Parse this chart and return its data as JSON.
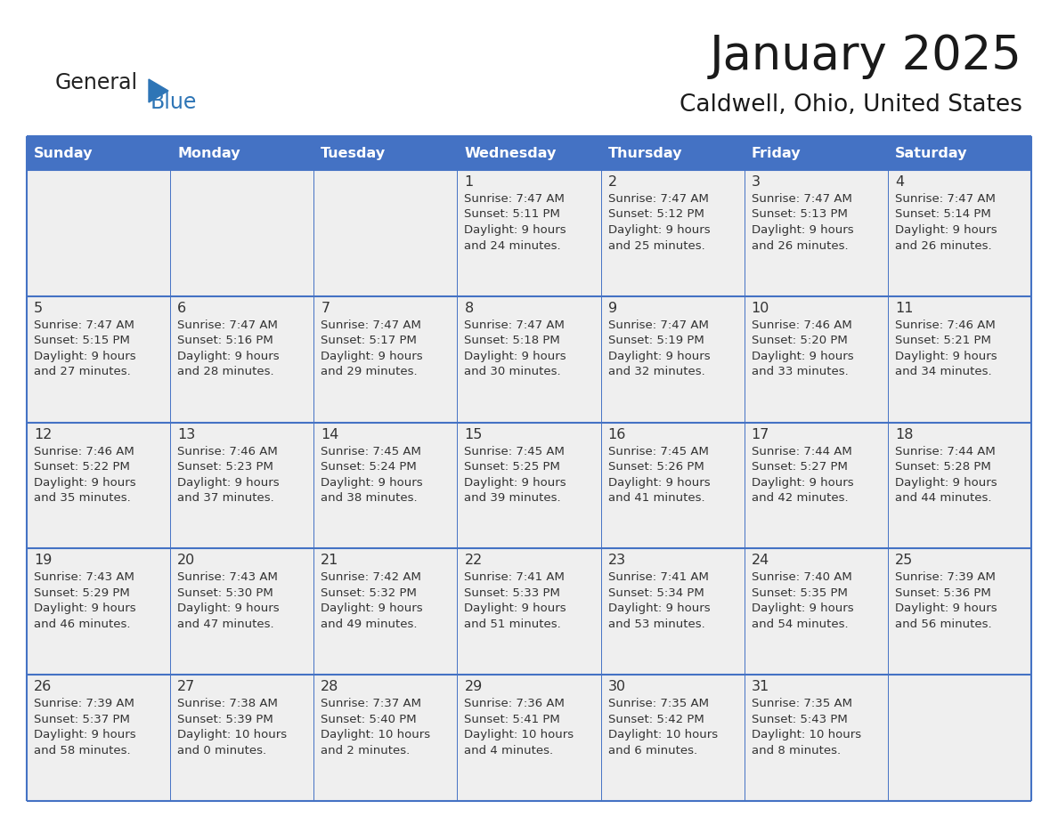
{
  "title": "January 2025",
  "subtitle": "Caldwell, Ohio, United States",
  "days_of_week": [
    "Sunday",
    "Monday",
    "Tuesday",
    "Wednesday",
    "Thursday",
    "Friday",
    "Saturday"
  ],
  "header_bg": "#4472C4",
  "header_text_color": "#FFFFFF",
  "cell_bg": "#EFEFEF",
  "gap_color": "#FFFFFF",
  "line_color": "#4472C4",
  "day_number_color": "#333333",
  "text_color": "#333333",
  "logo_general_color": "#222222",
  "logo_blue_color": "#2E75B6",
  "calendar": [
    [
      null,
      null,
      null,
      {
        "day": "1",
        "sunrise": "7:47 AM",
        "sunset": "5:11 PM",
        "daylight_h": "9 hours",
        "daylight_m": "24 minutes."
      },
      {
        "day": "2",
        "sunrise": "7:47 AM",
        "sunset": "5:12 PM",
        "daylight_h": "9 hours",
        "daylight_m": "25 minutes."
      },
      {
        "day": "3",
        "sunrise": "7:47 AM",
        "sunset": "5:13 PM",
        "daylight_h": "9 hours",
        "daylight_m": "26 minutes."
      },
      {
        "day": "4",
        "sunrise": "7:47 AM",
        "sunset": "5:14 PM",
        "daylight_h": "9 hours",
        "daylight_m": "26 minutes."
      }
    ],
    [
      {
        "day": "5",
        "sunrise": "7:47 AM",
        "sunset": "5:15 PM",
        "daylight_h": "9 hours",
        "daylight_m": "27 minutes."
      },
      {
        "day": "6",
        "sunrise": "7:47 AM",
        "sunset": "5:16 PM",
        "daylight_h": "9 hours",
        "daylight_m": "28 minutes."
      },
      {
        "day": "7",
        "sunrise": "7:47 AM",
        "sunset": "5:17 PM",
        "daylight_h": "9 hours",
        "daylight_m": "29 minutes."
      },
      {
        "day": "8",
        "sunrise": "7:47 AM",
        "sunset": "5:18 PM",
        "daylight_h": "9 hours",
        "daylight_m": "30 minutes."
      },
      {
        "day": "9",
        "sunrise": "7:47 AM",
        "sunset": "5:19 PM",
        "daylight_h": "9 hours",
        "daylight_m": "32 minutes."
      },
      {
        "day": "10",
        "sunrise": "7:46 AM",
        "sunset": "5:20 PM",
        "daylight_h": "9 hours",
        "daylight_m": "33 minutes."
      },
      {
        "day": "11",
        "sunrise": "7:46 AM",
        "sunset": "5:21 PM",
        "daylight_h": "9 hours",
        "daylight_m": "34 minutes."
      }
    ],
    [
      {
        "day": "12",
        "sunrise": "7:46 AM",
        "sunset": "5:22 PM",
        "daylight_h": "9 hours",
        "daylight_m": "35 minutes."
      },
      {
        "day": "13",
        "sunrise": "7:46 AM",
        "sunset": "5:23 PM",
        "daylight_h": "9 hours",
        "daylight_m": "37 minutes."
      },
      {
        "day": "14",
        "sunrise": "7:45 AM",
        "sunset": "5:24 PM",
        "daylight_h": "9 hours",
        "daylight_m": "38 minutes."
      },
      {
        "day": "15",
        "sunrise": "7:45 AM",
        "sunset": "5:25 PM",
        "daylight_h": "9 hours",
        "daylight_m": "39 minutes."
      },
      {
        "day": "16",
        "sunrise": "7:45 AM",
        "sunset": "5:26 PM",
        "daylight_h": "9 hours",
        "daylight_m": "41 minutes."
      },
      {
        "day": "17",
        "sunrise": "7:44 AM",
        "sunset": "5:27 PM",
        "daylight_h": "9 hours",
        "daylight_m": "42 minutes."
      },
      {
        "day": "18",
        "sunrise": "7:44 AM",
        "sunset": "5:28 PM",
        "daylight_h": "9 hours",
        "daylight_m": "44 minutes."
      }
    ],
    [
      {
        "day": "19",
        "sunrise": "7:43 AM",
        "sunset": "5:29 PM",
        "daylight_h": "9 hours",
        "daylight_m": "46 minutes."
      },
      {
        "day": "20",
        "sunrise": "7:43 AM",
        "sunset": "5:30 PM",
        "daylight_h": "9 hours",
        "daylight_m": "47 minutes."
      },
      {
        "day": "21",
        "sunrise": "7:42 AM",
        "sunset": "5:32 PM",
        "daylight_h": "9 hours",
        "daylight_m": "49 minutes."
      },
      {
        "day": "22",
        "sunrise": "7:41 AM",
        "sunset": "5:33 PM",
        "daylight_h": "9 hours",
        "daylight_m": "51 minutes."
      },
      {
        "day": "23",
        "sunrise": "7:41 AM",
        "sunset": "5:34 PM",
        "daylight_h": "9 hours",
        "daylight_m": "53 minutes."
      },
      {
        "day": "24",
        "sunrise": "7:40 AM",
        "sunset": "5:35 PM",
        "daylight_h": "9 hours",
        "daylight_m": "54 minutes."
      },
      {
        "day": "25",
        "sunrise": "7:39 AM",
        "sunset": "5:36 PM",
        "daylight_h": "9 hours",
        "daylight_m": "56 minutes."
      }
    ],
    [
      {
        "day": "26",
        "sunrise": "7:39 AM",
        "sunset": "5:37 PM",
        "daylight_h": "9 hours",
        "daylight_m": "58 minutes."
      },
      {
        "day": "27",
        "sunrise": "7:38 AM",
        "sunset": "5:39 PM",
        "daylight_h": "10 hours",
        "daylight_m": "0 minutes."
      },
      {
        "day": "28",
        "sunrise": "7:37 AM",
        "sunset": "5:40 PM",
        "daylight_h": "10 hours",
        "daylight_m": "2 minutes."
      },
      {
        "day": "29",
        "sunrise": "7:36 AM",
        "sunset": "5:41 PM",
        "daylight_h": "10 hours",
        "daylight_m": "4 minutes."
      },
      {
        "day": "30",
        "sunrise": "7:35 AM",
        "sunset": "5:42 PM",
        "daylight_h": "10 hours",
        "daylight_m": "6 minutes."
      },
      {
        "day": "31",
        "sunrise": "7:35 AM",
        "sunset": "5:43 PM",
        "daylight_h": "10 hours",
        "daylight_m": "8 minutes."
      },
      null
    ]
  ]
}
